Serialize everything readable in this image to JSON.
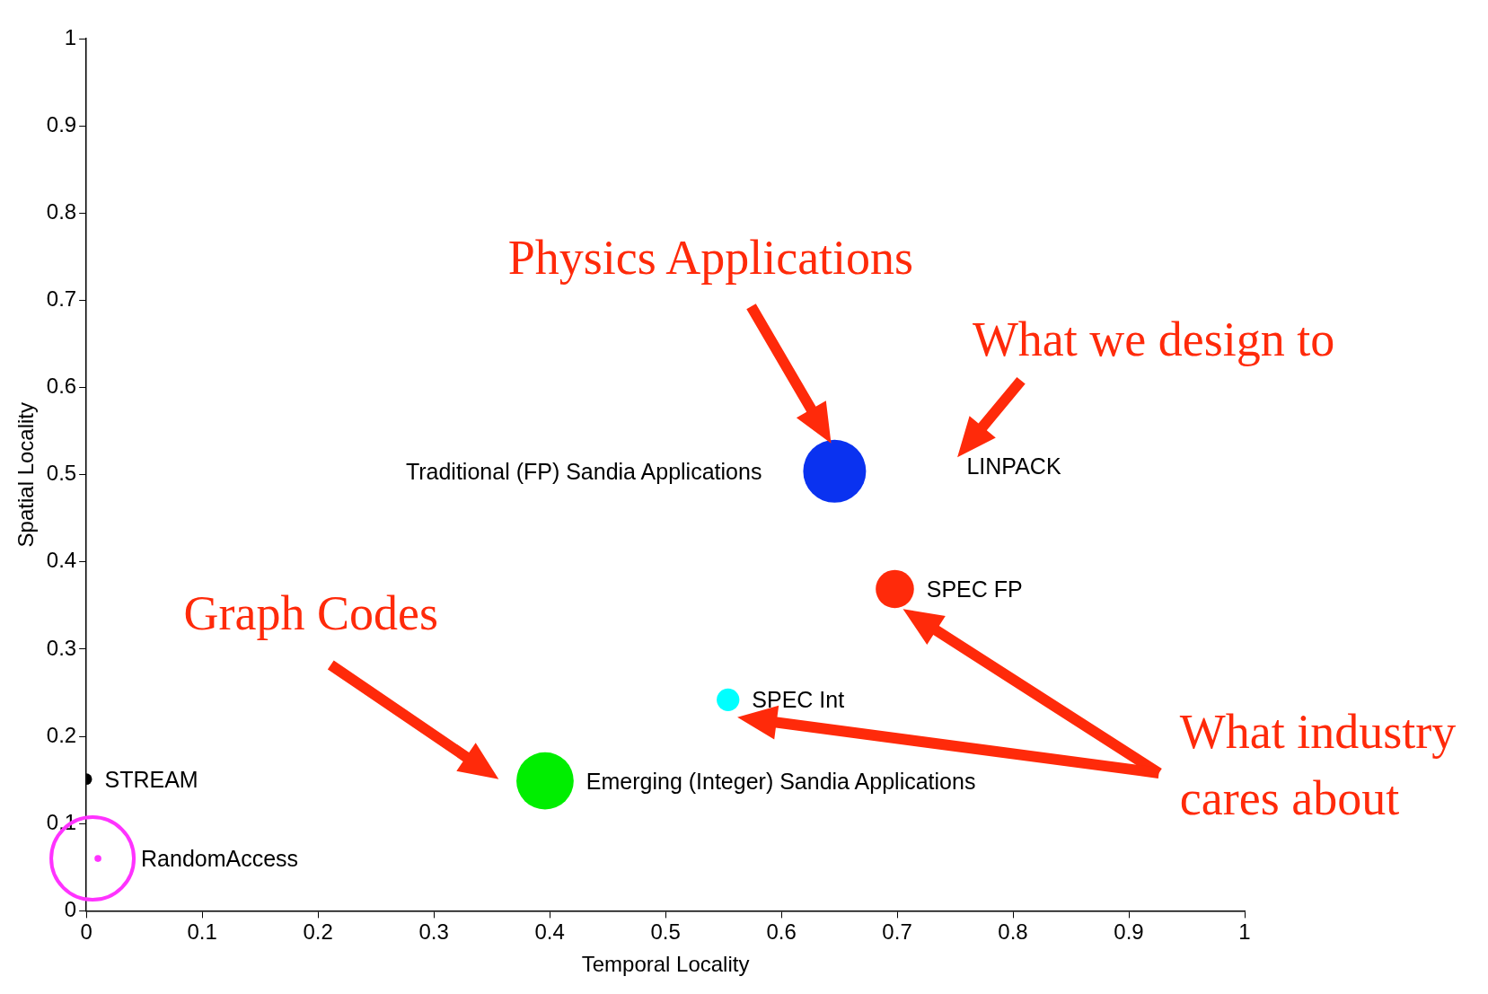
{
  "chart_data": {
    "type": "bubble",
    "xlabel": "Temporal Locality",
    "ylabel": "Spatial Locality",
    "xlim": [
      0,
      1
    ],
    "ylim": [
      0,
      1
    ],
    "xticks": [
      0,
      0.1,
      0.2,
      0.3,
      0.4,
      0.5,
      0.6,
      0.7,
      0.8,
      0.9,
      1
    ],
    "yticks": [
      0,
      0.1,
      0.2,
      0.3,
      0.4,
      0.5,
      0.6,
      0.7,
      0.8,
      0.9,
      1
    ],
    "grid": false,
    "legend": false,
    "marker": "circle",
    "series": [
      {
        "name": "Traditional (FP) Sandia Applications",
        "color": "#0a32f0",
        "x": [
          0.646
        ],
        "values": [
          0.504
        ],
        "sizes": [
          1
        ]
      },
      {
        "name": "SPEC FP",
        "color": "#ff2a0a",
        "x": [
          0.698
        ],
        "values": [
          0.369
        ],
        "sizes": [
          0.37
        ]
      },
      {
        "name": "SPEC Int",
        "color": "#00ffff",
        "x": [
          0.554
        ],
        "values": [
          0.242
        ],
        "sizes": [
          0.13
        ]
      },
      {
        "name": "Emerging (Integer) Sandia Applications",
        "color": "#00ee00",
        "x": [
          0.396
        ],
        "values": [
          0.149
        ],
        "sizes": [
          0.83
        ]
      },
      {
        "name": "STREAM",
        "color": "#000000",
        "x": [
          0
        ],
        "values": [
          0.151
        ],
        "sizes": [
          0.033
        ]
      },
      {
        "name": "RandomAccess",
        "color": "#ff33ff",
        "x": [
          0.01
        ],
        "values": [
          0.06
        ],
        "sizes": [
          0.012
        ]
      }
    ],
    "annotations": [
      "LINPACK",
      "Physics Applications",
      "What we design to",
      "Graph Codes",
      "What industry cares about"
    ]
  }
}
